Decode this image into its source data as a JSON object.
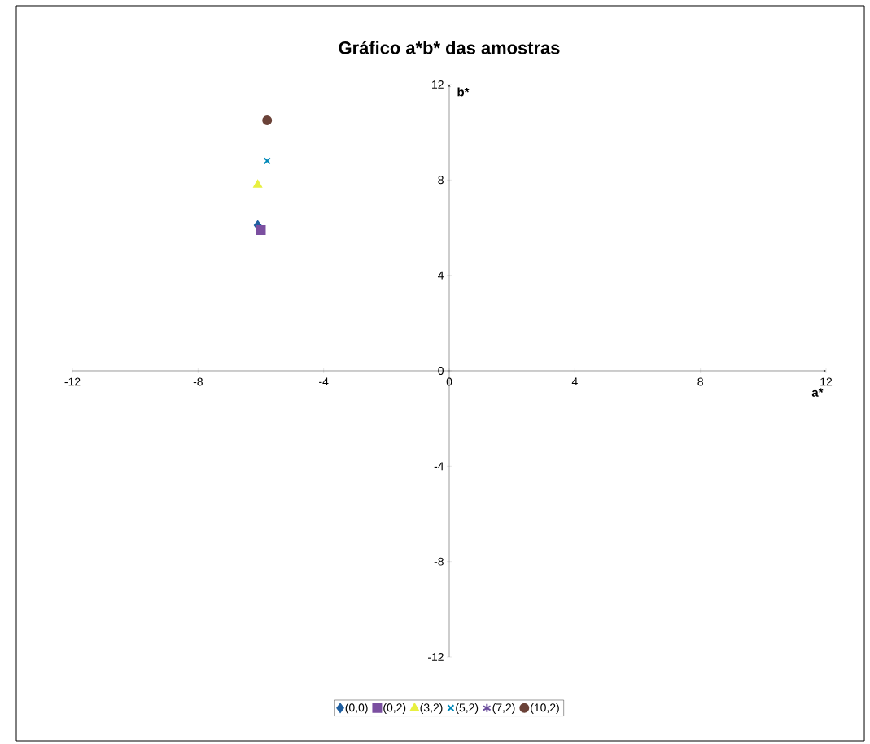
{
  "chart_data": {
    "type": "scatter",
    "title": "Gráfico a*b* das amostras",
    "xlabel": "a*",
    "ylabel": "b*",
    "xlim": [
      -12,
      12
    ],
    "ylim": [
      -12,
      12
    ],
    "xticks": [
      -12,
      -8,
      -4,
      0,
      4,
      8,
      12
    ],
    "yticks": [
      -12,
      -8,
      -4,
      0,
      4,
      8,
      12
    ],
    "grid": false,
    "legend": "bottom",
    "series": [
      {
        "name": "(0,0)",
        "color": "#1f5fa0",
        "marker": "diamond",
        "x": [
          -6.1
        ],
        "values": [
          6.1
        ]
      },
      {
        "name": "(0,2)",
        "color": "#7b4fa0",
        "marker": "square",
        "x": [
          -6.0
        ],
        "values": [
          5.9
        ]
      },
      {
        "name": "(3,2)",
        "color": "#e8f040",
        "marker": "triangle",
        "x": [
          -6.1
        ],
        "values": [
          7.8
        ]
      },
      {
        "name": "(5,2)",
        "color": "#0088b8",
        "marker": "cross",
        "x": [
          -5.8
        ],
        "values": [
          8.8
        ]
      },
      {
        "name": "(7,2)",
        "color": "#6a4c9c",
        "marker": "star",
        "x": [
          null
        ],
        "values": [
          null
        ]
      },
      {
        "name": "(10,2)",
        "color": "#6b4238",
        "marker": "circle",
        "x": [
          -5.8
        ],
        "values": [
          10.5
        ]
      }
    ]
  }
}
